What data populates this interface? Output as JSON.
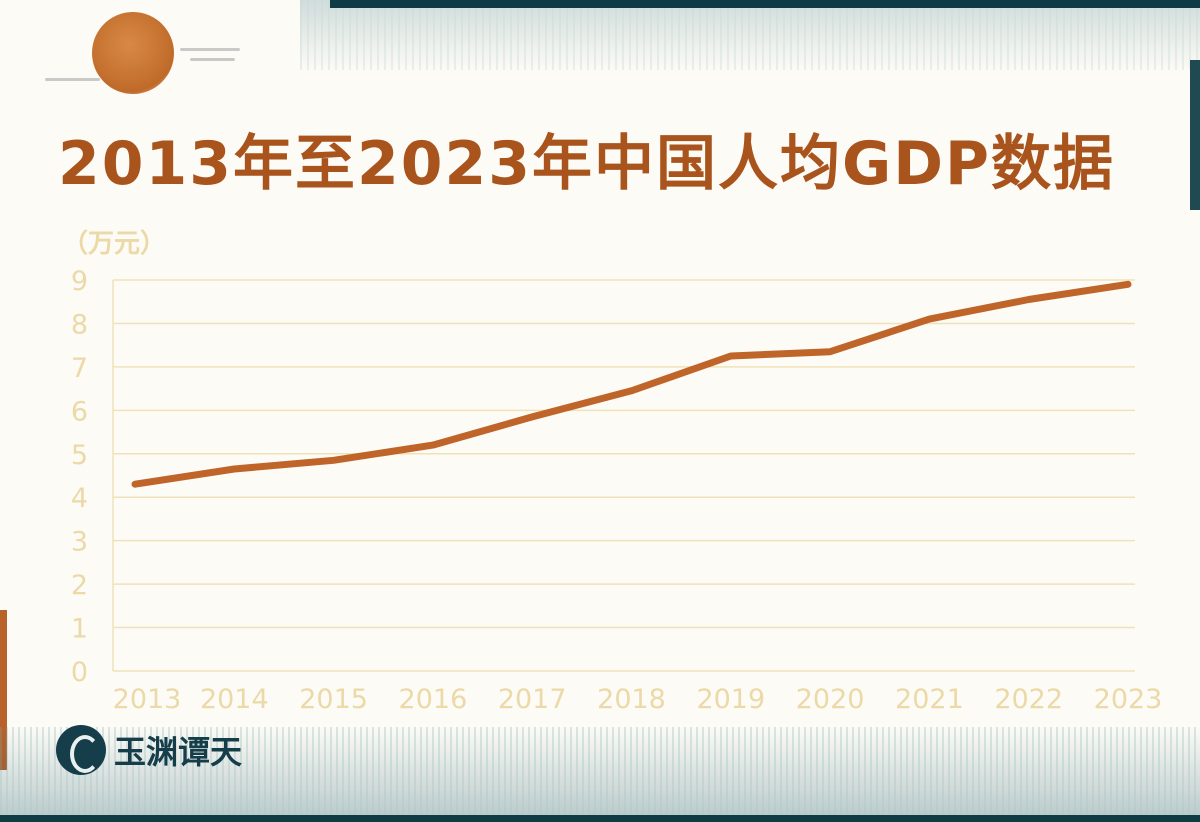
{
  "title": "2013年至2023年中国人均GDP数据",
  "logo_text": "玉渊谭天",
  "colors": {
    "line": "#c0652a",
    "grid": "#f0e2b8",
    "axis_text": "#ecd9a8",
    "title": "#a9541c"
  },
  "chart_data": {
    "type": "line",
    "title": "2013年至2023年中国人均GDP数据",
    "unit_label": "（万元）",
    "categories": [
      "2013",
      "2014",
      "2015",
      "2016",
      "2017",
      "2018",
      "2019",
      "2020",
      "2021",
      "2022",
      "2023"
    ],
    "series": [
      {
        "values": [
          4.3,
          4.65,
          4.85,
          5.2,
          5.85,
          6.45,
          7.25,
          7.35,
          8.1,
          8.55,
          8.9
        ]
      }
    ],
    "yticks": [
      "0",
      "1",
      "2",
      "3",
      "4",
      "5",
      "6",
      "7",
      "8",
      "9"
    ],
    "ylim": [
      0,
      9
    ],
    "grid": true
  }
}
